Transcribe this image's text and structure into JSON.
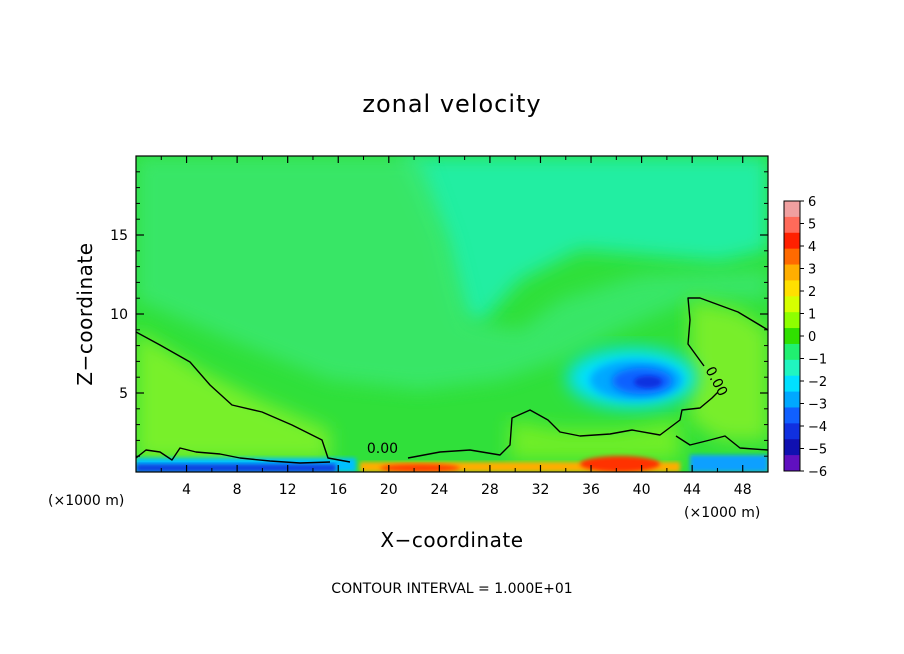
{
  "chart_data": {
    "type": "heatmap",
    "title": "zonal velocity",
    "xlabel": "X−coordinate",
    "ylabel": "Z−coordinate",
    "x_unit_left": "(×1000 m)",
    "x_unit_right": "(×1000 m)",
    "footer": "CONTOUR INTERVAL =  1.000E+01",
    "xlim": [
      0,
      50
    ],
    "ylim": [
      0,
      20
    ],
    "x_ticks": [
      4,
      8,
      12,
      16,
      20,
      24,
      28,
      32,
      36,
      40,
      44,
      48
    ],
    "y_ticks": [
      5,
      10,
      15
    ],
    "contour_labels": [
      {
        "text": "0.00",
        "x": 19.5,
        "z": 1.2
      },
      {
        "text": "0.00",
        "x": 45.6,
        "z": 5.6
      }
    ],
    "colorbar": {
      "ticks": [
        "6",
        "5",
        "4",
        "3",
        "2",
        "1",
        "0",
        "−1",
        "−2",
        "−3",
        "−4",
        "−5",
        "−6"
      ],
      "colors": [
        "#f0a0a0",
        "#ff6a5a",
        "#ff2000",
        "#ff6a00",
        "#ffae00",
        "#ffe000",
        "#d6ff00",
        "#8eff00",
        "#30e000",
        "#20f070",
        "#20f5c0",
        "#00e0ff",
        "#00a8ff",
        "#1060ff",
        "#1030e0",
        "#1010b0",
        "#6010c0"
      ]
    },
    "features": [
      {
        "name": "negative-core",
        "x": 39.5,
        "z": 5.6,
        "value": -5
      },
      {
        "name": "upper-negative-region",
        "x": 26,
        "z": 15,
        "value": -1.5
      },
      {
        "name": "surface-positive-band",
        "x": 38,
        "z": 0.4,
        "value": 4
      }
    ]
  }
}
